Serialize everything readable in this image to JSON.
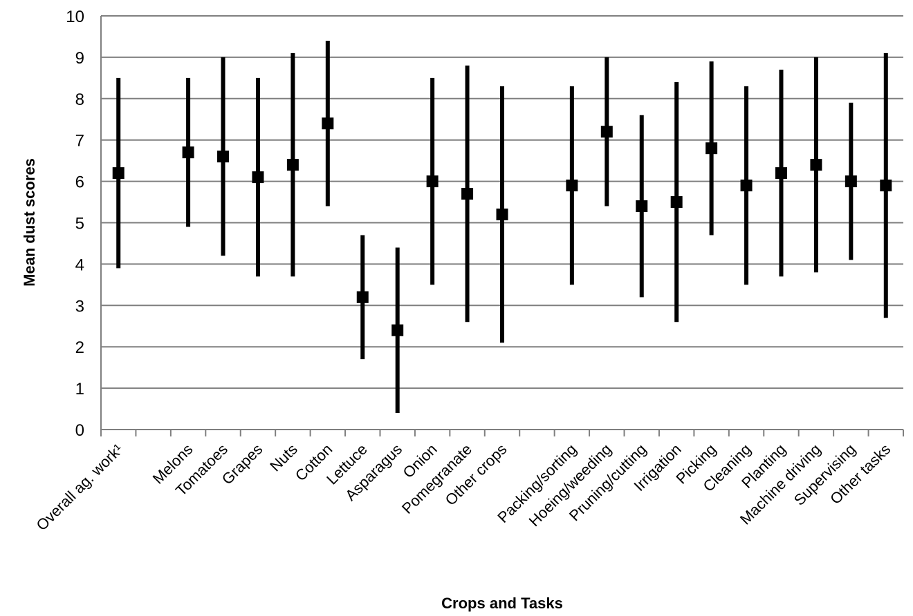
{
  "chart_data": {
    "type": "scatter",
    "xlabel": "Crops and Tasks",
    "ylabel": "Mean dust scores",
    "ylim": [
      0,
      10
    ],
    "yticks": [
      "0",
      "1",
      "2",
      "3",
      "4",
      "5",
      "6",
      "7",
      "8",
      "9",
      "10"
    ],
    "grid": "horizontal",
    "legend": "none",
    "colors": {
      "marker": "#000000",
      "grid": "#7f7f7f",
      "axis": "#7f7f7f"
    },
    "categories": [
      "Overall ag. work¹",
      "",
      "Melons",
      "Tomatoes",
      "Grapes",
      "Nuts",
      "Cotton",
      "Lettuce",
      "Asparagus",
      "Onion",
      "Pomegranate",
      "Other crops",
      "",
      "Packing/sorting",
      "Hoeing/weeding",
      "Pruning/cutting",
      "Irrigation",
      "Picking",
      "Cleaning",
      "Planting",
      "Machine driving",
      "Supervising",
      "Other tasks"
    ],
    "points": [
      {
        "category": "Overall ag. work¹",
        "mean": 6.2,
        "low": 3.9,
        "high": 8.5
      },
      {
        "category": "Melons",
        "mean": 6.7,
        "low": 4.9,
        "high": 8.5
      },
      {
        "category": "Tomatoes",
        "mean": 6.6,
        "low": 4.2,
        "high": 9.0
      },
      {
        "category": "Grapes",
        "mean": 6.1,
        "low": 3.7,
        "high": 8.5
      },
      {
        "category": "Nuts",
        "mean": 6.4,
        "low": 3.7,
        "high": 9.1
      },
      {
        "category": "Cotton",
        "mean": 7.4,
        "low": 5.4,
        "high": 9.4
      },
      {
        "category": "Lettuce",
        "mean": 3.2,
        "low": 1.7,
        "high": 4.7
      },
      {
        "category": "Asparagus",
        "mean": 2.4,
        "low": 0.4,
        "high": 4.4
      },
      {
        "category": "Onion",
        "mean": 6.0,
        "low": 3.5,
        "high": 8.5
      },
      {
        "category": "Pomegranate",
        "mean": 5.7,
        "low": 2.6,
        "high": 8.8
      },
      {
        "category": "Other crops",
        "mean": 5.2,
        "low": 2.1,
        "high": 8.3
      },
      {
        "category": "Packing/sorting",
        "mean": 5.9,
        "low": 3.5,
        "high": 8.3
      },
      {
        "category": "Hoeing/weeding",
        "mean": 7.2,
        "low": 5.4,
        "high": 9.0
      },
      {
        "category": "Pruning/cutting",
        "mean": 5.4,
        "low": 3.2,
        "high": 7.6
      },
      {
        "category": "Irrigation",
        "mean": 5.5,
        "low": 2.6,
        "high": 8.4
      },
      {
        "category": "Picking",
        "mean": 6.8,
        "low": 4.7,
        "high": 8.9
      },
      {
        "category": "Cleaning",
        "mean": 5.9,
        "low": 3.5,
        "high": 8.3
      },
      {
        "category": "Planting",
        "mean": 6.2,
        "low": 3.7,
        "high": 8.7
      },
      {
        "category": "Machine driving",
        "mean": 6.4,
        "low": 3.8,
        "high": 9.0
      },
      {
        "category": "Supervising",
        "mean": 6.0,
        "low": 4.1,
        "high": 7.9
      },
      {
        "category": "Other tasks",
        "mean": 5.9,
        "low": 2.7,
        "high": 9.1
      }
    ]
  }
}
